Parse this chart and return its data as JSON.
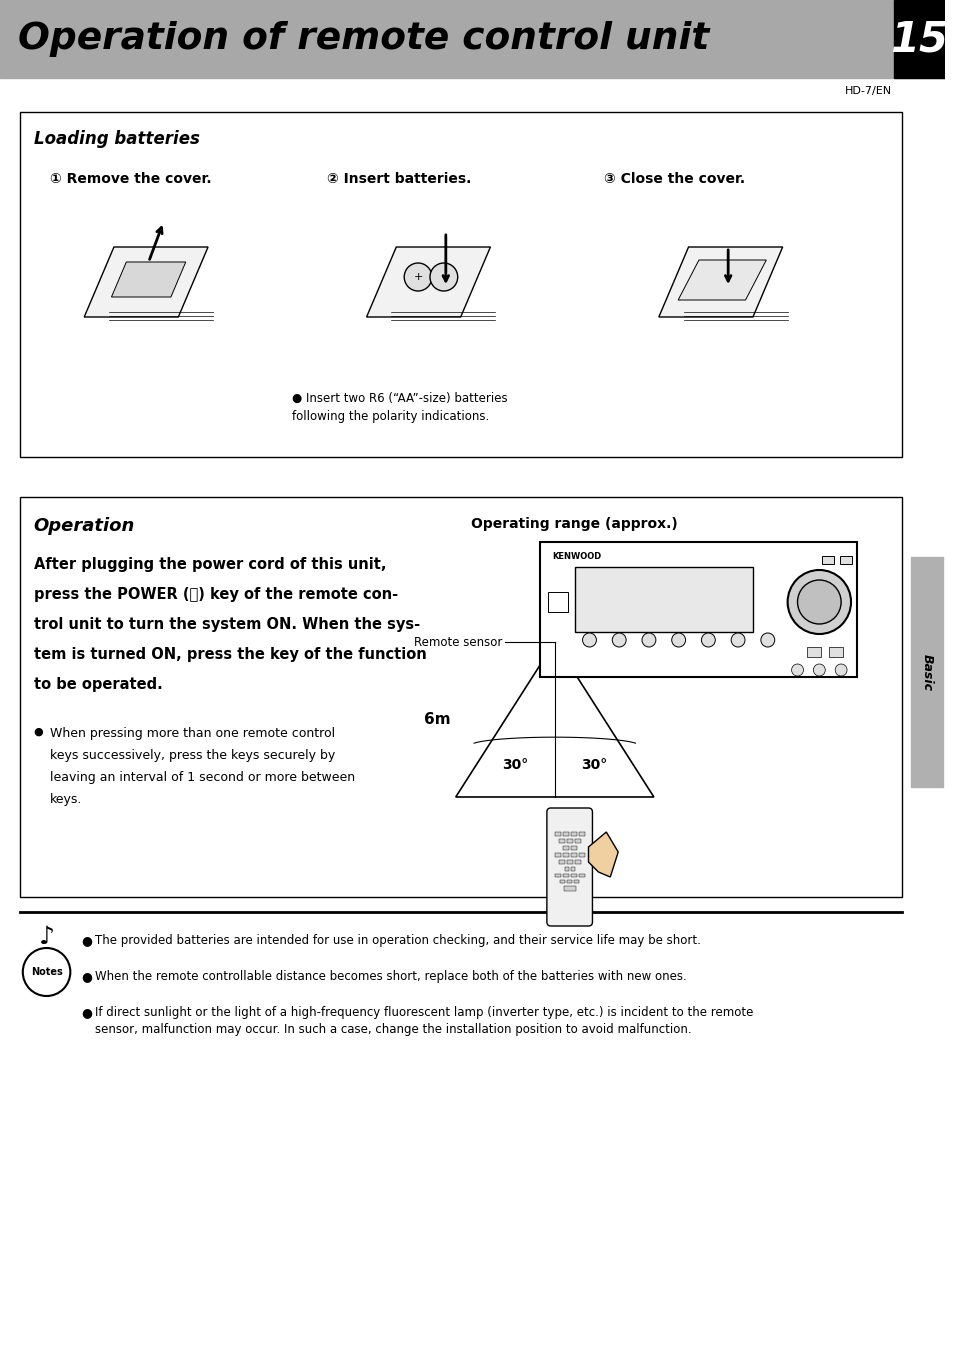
{
  "page_title": "Operation of remote control unit",
  "page_number": "15",
  "subtitle": "HD-7/EN",
  "bg_color": "#ffffff",
  "header_bg": "#a8a8a8",
  "section1_title": "Loading batteries",
  "step1": "① Remove the cover.",
  "step2": "② Insert batteries.",
  "step3": "③ Close the cover.",
  "battery_note": "● Insert two R6 (“AA”-size) batteries\nfollowing the polarity indications.",
  "section2_title": "Operation",
  "section2_header": "Operating range (approx.)",
  "operation_text_line1": "After plugging the power cord of this unit,",
  "operation_text_line2": "press the POWER (⏻) key of the remote con-",
  "operation_text_line3": "trol unit to turn the system ON. When the sys-",
  "operation_text_line4": "tem is turned ON, press the key of the function",
  "operation_text_line5": "to be operated.",
  "operation_bullet_lines": [
    "When pressing more than one remote control",
    "keys successively, press the keys securely by",
    "leaving an interval of 1 second or more between",
    "keys."
  ],
  "remote_sensor_label": "Remote sensor",
  "distance_label": "6m",
  "angle_left": "30°",
  "angle_right": "30°",
  "notes": [
    "The provided batteries are intended for use in operation checking, and their service life may be short.",
    "When the remote controllable distance becomes short, replace both of the batteries with new ones.",
    "If direct sunlight or the light of a high-frequency fluorescent lamp (inverter type, etc.) is incident to the remote\nsensor, malfunction may occur. In such a case, change the installation position to avoid malfunction."
  ],
  "sidebar_text": "Basic",
  "sidebar_color": "#b0b0b0"
}
